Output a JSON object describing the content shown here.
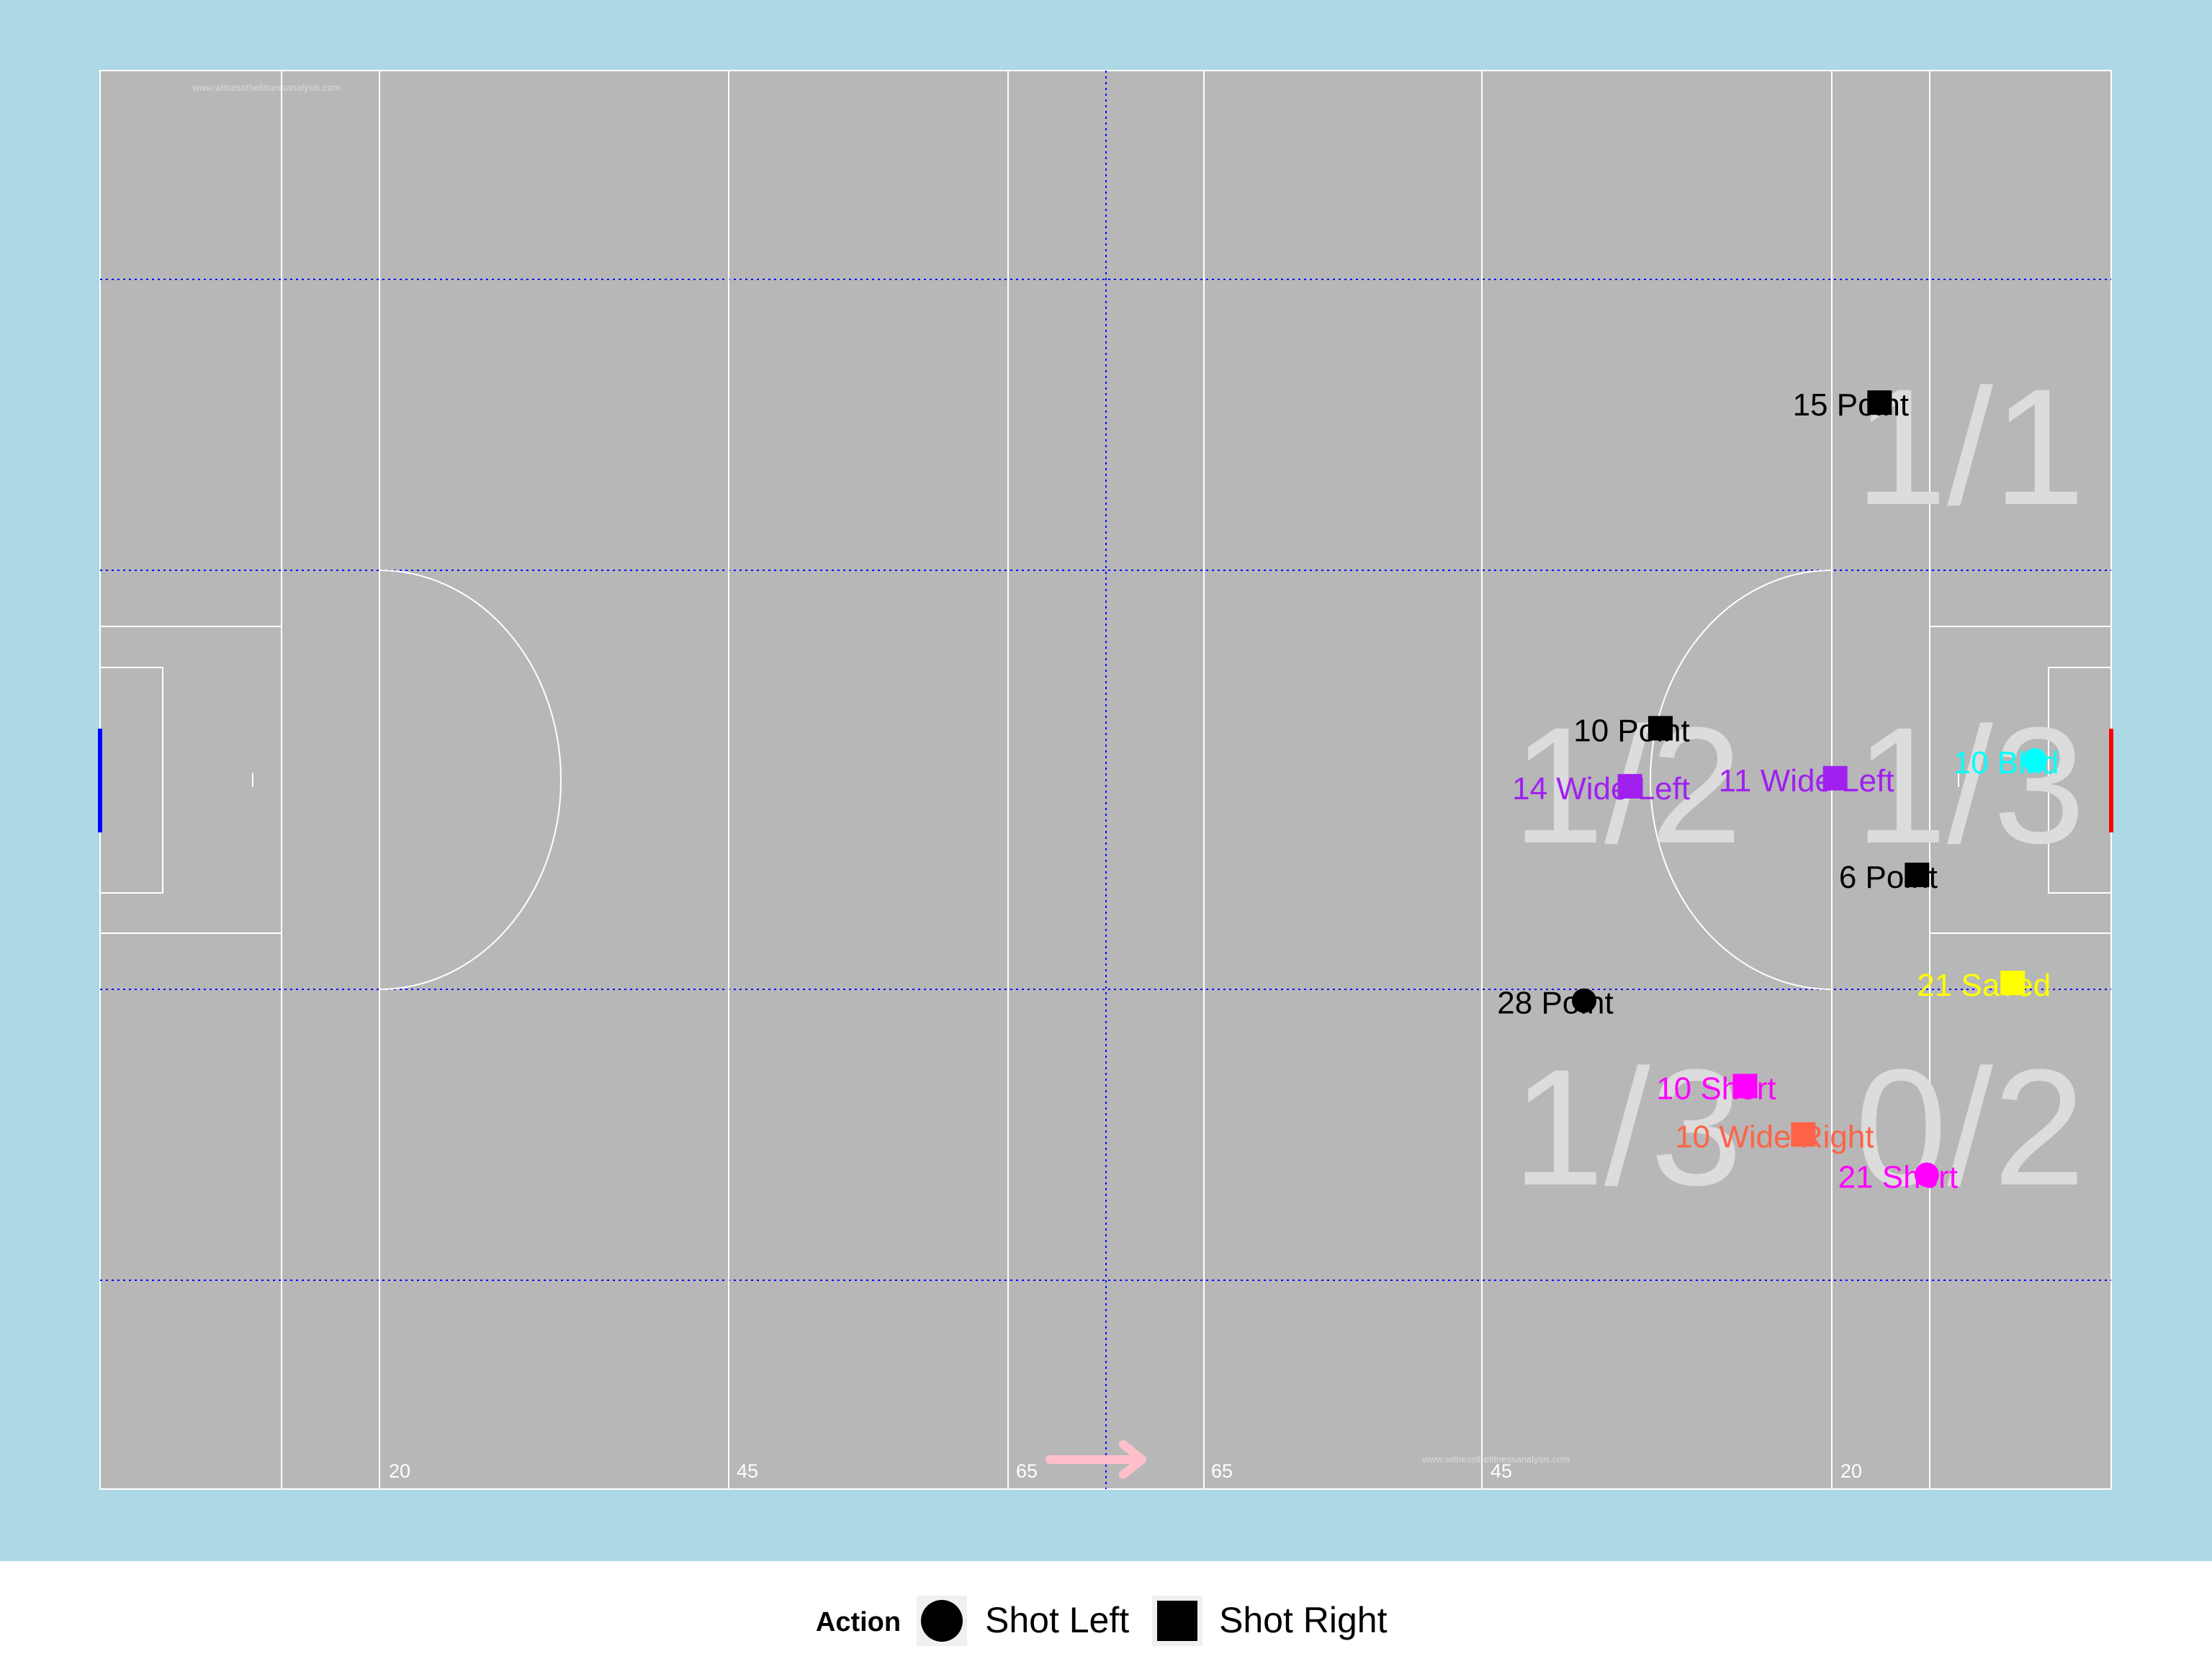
{
  "colors": {
    "outer_background": "#add8e6",
    "pitch": "#b7b7b7",
    "lines": "#ffffff",
    "zone_grid": "#0000ff",
    "zone_label": "#dcdcdc",
    "left_goal": "#0000ff",
    "right_goal": "#ff0000",
    "direction_arrow": "#ffc0cb",
    "watermark": "#d9d9d9"
  },
  "watermark": "www.witnessthefitnessanalysis.com",
  "distance_markers": [
    "20",
    "45",
    "65",
    "65",
    "45",
    "20"
  ],
  "zone_labels": [
    {
      "zone": "top-right",
      "text": "1/1"
    },
    {
      "zone": "center-left",
      "text": "1/2"
    },
    {
      "zone": "center-right",
      "text": "1/3"
    },
    {
      "zone": "bottom-left",
      "text": "1/3"
    },
    {
      "zone": "bottom-right",
      "text": "0/2"
    }
  ],
  "legend": {
    "title": "Action",
    "items": [
      {
        "label": "Shot Left",
        "shape": "circle"
      },
      {
        "label": "Shot Right",
        "shape": "square"
      }
    ]
  },
  "chart_data": {
    "type": "scatter",
    "title": "",
    "xlabel": "",
    "ylabel": "",
    "xlim": [
      0,
      145
    ],
    "ylim": [
      0,
      88
    ],
    "attacking_direction": "right",
    "grid": "dotted zone lines",
    "legend_position": "bottom",
    "points": [
      {
        "x": 128.3,
        "y": 67.4,
        "shape": "square",
        "color": "#000000",
        "label": "15 Point"
      },
      {
        "x": 112.5,
        "y": 47.2,
        "shape": "square",
        "color": "#000000",
        "label": "10 Point"
      },
      {
        "x": 110.3,
        "y": 43.6,
        "shape": "square",
        "color": "#a020f0",
        "label": "14 Wide Left"
      },
      {
        "x": 125.1,
        "y": 44.1,
        "shape": "square",
        "color": "#a020f0",
        "label": "11 Wide Left"
      },
      {
        "x": 139.5,
        "y": 45.2,
        "shape": "circle",
        "color": "#00ffff",
        "label": "10 Blkd"
      },
      {
        "x": 131.0,
        "y": 38.1,
        "shape": "square",
        "color": "#000000",
        "label": "6 Point"
      },
      {
        "x": 137.9,
        "y": 31.4,
        "shape": "square",
        "color": "#ffff00",
        "label": "21 Saved"
      },
      {
        "x": 107.0,
        "y": 30.3,
        "shape": "circle",
        "color": "#000000",
        "label": "28 Point"
      },
      {
        "x": 118.6,
        "y": 25.0,
        "shape": "square",
        "color": "#ff00ff",
        "label": "10 Short"
      },
      {
        "x": 122.8,
        "y": 22.0,
        "shape": "square",
        "color": "#ff6347",
        "label": "10 Wide Right"
      },
      {
        "x": 131.7,
        "y": 19.5,
        "shape": "circle",
        "color": "#ff00ff",
        "label": "21 Short"
      }
    ]
  }
}
